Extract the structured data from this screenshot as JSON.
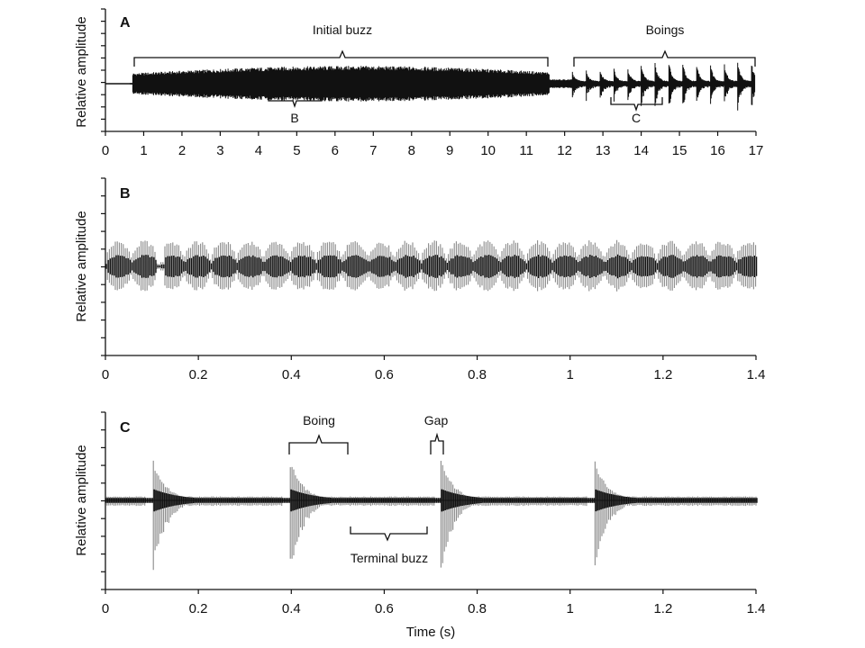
{
  "colors": {
    "background": "#ffffff",
    "axis": "#111111",
    "waveform_dark": "#111111",
    "waveform_grey": "#8a8a8a"
  },
  "chart_data": [
    {
      "id": "A",
      "type": "waveform",
      "panel_letter": "A",
      "ylabel": "Relative amplitude",
      "xlabel": "",
      "xlim": [
        0,
        17
      ],
      "ylim": [
        -1,
        1
      ],
      "x_ticks": [
        0,
        1,
        2,
        3,
        4,
        5,
        6,
        7,
        8,
        9,
        10,
        11,
        12,
        13,
        14,
        15,
        16,
        17
      ],
      "x_tick_labels": [
        "0",
        "1",
        "2",
        "3",
        "4",
        "5",
        "6",
        "7",
        "8",
        "9",
        "10",
        "11",
        "12",
        "13",
        "14",
        "15",
        "16",
        "17"
      ],
      "y_minor_ticks": 10,
      "segments": [
        {
          "label": "Initial buzz",
          "start": 0.75,
          "end": 11.6,
          "kind": "buzz",
          "amplitude": 0.3
        },
        {
          "label": "Boings",
          "start": 12.2,
          "end": 16.95,
          "kind": "boings",
          "pulse_period": 0.36,
          "amplitude": 0.4
        }
      ],
      "annotations": [
        {
          "text": "Initial buzz",
          "x_start": 0.75,
          "x_end": 11.6,
          "position": "above"
        },
        {
          "text": "Boings",
          "x_start": 12.2,
          "x_end": 16.95,
          "position": "above"
        },
        {
          "text": "B",
          "x_start": 4.25,
          "x_end": 5.65,
          "position": "below"
        },
        {
          "text": "C",
          "x_start": 13.2,
          "x_end": 14.55,
          "position": "below"
        }
      ]
    },
    {
      "id": "B",
      "type": "waveform",
      "panel_letter": "B",
      "ylabel": "Relative amplitude",
      "xlabel": "",
      "xlim": [
        0,
        1.4
      ],
      "ylim": [
        -1,
        1
      ],
      "x_ticks": [
        0,
        0.2,
        0.4,
        0.6,
        0.8,
        1,
        1.2,
        1.4
      ],
      "x_tick_labels": [
        "0",
        "0.2",
        "0.4",
        "0.6",
        "0.8",
        "1",
        "1.2",
        "1.4"
      ],
      "y_minor_ticks": 10,
      "pulse_period": 0.0565,
      "amplitude": 0.32,
      "annotations": []
    },
    {
      "id": "C",
      "type": "waveform",
      "panel_letter": "C",
      "ylabel": "Relative amplitude",
      "xlabel": "Time (s)",
      "xlim": [
        0,
        1.4
      ],
      "ylim": [
        -1,
        1
      ],
      "x_ticks": [
        0,
        0.2,
        0.4,
        0.6,
        0.8,
        1,
        1.2,
        1.4
      ],
      "x_tick_labels": [
        "0",
        "0.2",
        "0.4",
        "0.6",
        "0.8",
        "1",
        "1.2",
        "1.4"
      ],
      "y_minor_ticks": 10,
      "boing_onsets": [
        0.1,
        0.395,
        0.72,
        1.05
      ],
      "boing_duration": 0.125,
      "boing_peak_amplitude": 0.78,
      "terminal_buzz_amplitude": 0.07,
      "annotations": [
        {
          "text": "Boing",
          "x_start": 0.395,
          "x_end": 0.52,
          "position": "above"
        },
        {
          "text": "Gap",
          "x_start": 0.7,
          "x_end": 0.725,
          "position": "above"
        },
        {
          "text": "Terminal buzz",
          "x_start": 0.53,
          "x_end": 0.7,
          "position": "below"
        }
      ]
    }
  ]
}
